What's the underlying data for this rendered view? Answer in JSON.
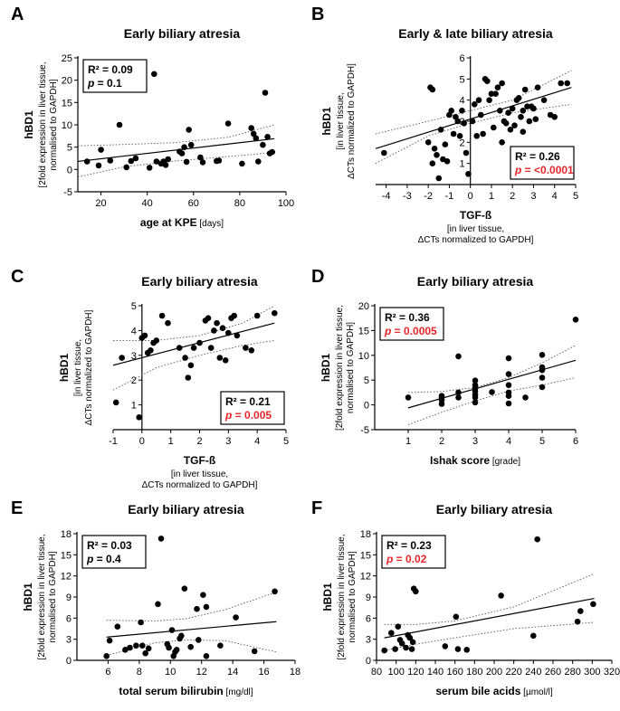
{
  "colors": {
    "axis": "#000000",
    "point": "#000000",
    "significant": "#e8262a",
    "ci": "#555555"
  },
  "chart_data": [
    {
      "panel": "A",
      "type": "scatter",
      "title": "Early biliary atresia",
      "ylabel": "hBD1",
      "ysub": [
        "[2fold expression in liver tissue,",
        "normalised to GAPDH]"
      ],
      "xlabel": "age at KPE",
      "xunit": "[days]",
      "xsub": [],
      "xlim": [
        10,
        100
      ],
      "ylim": [
        -5,
        25
      ],
      "xticks": [
        20,
        40,
        60,
        80,
        100
      ],
      "yticks": [
        -5,
        0,
        5,
        10,
        15,
        20,
        25
      ],
      "stats": {
        "r2": "R² = 0.09",
        "p": "= 0.1",
        "significant": false
      },
      "stats_position": "top-left",
      "points": [
        [
          14,
          1.8
        ],
        [
          19,
          0.9
        ],
        [
          20,
          4.4
        ],
        [
          24,
          2.0
        ],
        [
          28,
          10.0
        ],
        [
          31,
          0.5
        ],
        [
          33,
          1.9
        ],
        [
          35,
          2.5
        ],
        [
          41,
          0.4
        ],
        [
          43,
          21.4
        ],
        [
          44,
          1.8
        ],
        [
          46,
          1.3
        ],
        [
          47,
          1.8
        ],
        [
          48,
          1.0
        ],
        [
          49,
          2.3
        ],
        [
          54,
          4.0
        ],
        [
          55,
          3.6
        ],
        [
          56,
          5.0
        ],
        [
          57,
          1.7
        ],
        [
          58,
          8.9
        ],
        [
          59,
          5.5
        ],
        [
          63,
          2.7
        ],
        [
          64,
          1.6
        ],
        [
          70,
          1.9
        ],
        [
          71,
          2.0
        ],
        [
          75,
          10.3
        ],
        [
          81,
          1.3
        ],
        [
          85,
          9.3
        ],
        [
          86,
          8.0
        ],
        [
          87,
          7.0
        ],
        [
          88,
          1.8
        ],
        [
          90,
          5.5
        ],
        [
          91,
          17.2
        ],
        [
          92,
          7.3
        ],
        [
          93,
          3.6
        ],
        [
          94,
          3.9
        ]
      ],
      "fit": {
        "x": [
          10,
          95
        ],
        "y": [
          1.8,
          6.9
        ]
      },
      "ci_upper": {
        "x": [
          10,
          30,
          52,
          75,
          95
        ],
        "y": [
          5.3,
          5.6,
          6.0,
          7.2,
          10.0
        ]
      },
      "ci_lower": {
        "x": [
          10,
          30,
          52,
          75,
          95
        ],
        "y": [
          -1.7,
          0.6,
          1.9,
          2.9,
          3.8
        ]
      }
    },
    {
      "panel": "B",
      "type": "scatter",
      "title": "Early & late biliary atresia",
      "ylabel": "hBD1",
      "ysub": [
        "[in liver tissue,",
        "ΔCTs normalized to GAPDH]"
      ],
      "xlabel": "TGF-ß",
      "xunit": "",
      "xsub": [
        "[in liver tissue,",
        "ΔCTs normalized to GAPDH]"
      ],
      "xlim": [
        -4.5,
        5
      ],
      "ylim": [
        0,
        6
      ],
      "xticks": [
        -4,
        -3,
        -2,
        -1,
        0,
        1,
        2,
        3,
        4,
        5
      ],
      "yticks": [
        1,
        2,
        3,
        4,
        5,
        6
      ],
      "origin_axes": true,
      "stats": {
        "r2": "R² = 0.26",
        "p": "= <0.0001",
        "significant": true
      },
      "stats_position": "bottom-right",
      "points": [
        [
          -4.1,
          1.5
        ],
        [
          -2.0,
          2.0
        ],
        [
          -1.9,
          4.6
        ],
        [
          -1.8,
          4.5
        ],
        [
          -1.8,
          1.0
        ],
        [
          -1.7,
          1.7
        ],
        [
          -1.6,
          1.4
        ],
        [
          -1.5,
          0.3
        ],
        [
          -1.4,
          2.6
        ],
        [
          -1.3,
          1.2
        ],
        [
          -1.2,
          1.9
        ],
        [
          -1.1,
          1.1
        ],
        [
          -1.0,
          3.3
        ],
        [
          -0.9,
          3.5
        ],
        [
          -0.8,
          2.4
        ],
        [
          -0.7,
          3.2
        ],
        [
          -0.6,
          3.0
        ],
        [
          -0.5,
          2.3
        ],
        [
          -0.4,
          3.5
        ],
        [
          -0.3,
          2.9
        ],
        [
          -0.2,
          1.5
        ],
        [
          -0.1,
          0.5
        ],
        [
          0.1,
          3.0
        ],
        [
          0.2,
          3.8
        ],
        [
          0.3,
          2.3
        ],
        [
          0.4,
          4.0
        ],
        [
          0.5,
          3.3
        ],
        [
          0.6,
          2.4
        ],
        [
          0.7,
          5.0
        ],
        [
          0.8,
          4.9
        ],
        [
          0.9,
          4.0
        ],
        [
          1.0,
          4.3
        ],
        [
          1.1,
          2.7
        ],
        [
          1.2,
          4.3
        ],
        [
          1.3,
          4.6
        ],
        [
          1.4,
          3.5
        ],
        [
          1.5,
          2.0
        ],
        [
          1.5,
          4.8
        ],
        [
          1.6,
          3.0
        ],
        [
          1.7,
          2.9
        ],
        [
          1.8,
          3.4
        ],
        [
          1.9,
          2.6
        ],
        [
          2.0,
          3.6
        ],
        [
          2.1,
          2.8
        ],
        [
          2.2,
          4.0
        ],
        [
          2.3,
          4.1
        ],
        [
          2.4,
          3.2
        ],
        [
          2.5,
          2.5
        ],
        [
          2.5,
          3.5
        ],
        [
          2.6,
          4.5
        ],
        [
          2.7,
          3.7
        ],
        [
          2.8,
          3.0
        ],
        [
          2.9,
          3.7
        ],
        [
          3.0,
          3.6
        ],
        [
          3.1,
          3.1
        ],
        [
          3.2,
          4.6
        ],
        [
          3.5,
          4.0
        ],
        [
          3.8,
          3.3
        ],
        [
          4.0,
          3.2
        ],
        [
          4.3,
          4.8
        ],
        [
          4.6,
          4.8
        ]
      ],
      "fit": {
        "x": [
          -4.5,
          4.8
        ],
        "y": [
          1.7,
          4.6
        ]
      },
      "ci_upper": {
        "x": [
          -4.5,
          -2,
          0,
          2,
          4.8
        ],
        "y": [
          2.4,
          3.0,
          3.5,
          4.0,
          5.4
        ]
      },
      "ci_lower": {
        "x": [
          -4.5,
          -2,
          0,
          2,
          4.8
        ],
        "y": [
          1.0,
          2.3,
          2.9,
          3.4,
          3.8
        ]
      }
    },
    {
      "panel": "C",
      "type": "scatter",
      "title": "Early biliary atresia",
      "ylabel": "hBD1",
      "ysub": [
        "[in liver tissue,",
        "ΔCTs normalized to GAPDH]"
      ],
      "xlabel": "TGF-ß",
      "xunit": "",
      "xsub": [
        "[in liver tissue,",
        "ΔCTs normalized to GAPDH]"
      ],
      "xlim": [
        -1,
        5
      ],
      "ylim": [
        0,
        5
      ],
      "xticks": [
        -1,
        0,
        1,
        2,
        3,
        4,
        5
      ],
      "yticks": [
        1,
        2,
        3,
        4,
        5
      ],
      "origin_axes": true,
      "stats": {
        "r2": "R² = 0.21",
        "p": "= 0.005",
        "significant": true
      },
      "stats_position": "bottom-right",
      "points": [
        [
          -0.9,
          1.1
        ],
        [
          -0.7,
          2.9
        ],
        [
          -0.1,
          0.5
        ],
        [
          0.0,
          3.7
        ],
        [
          0.1,
          3.8
        ],
        [
          0.2,
          3.1
        ],
        [
          0.3,
          3.2
        ],
        [
          0.4,
          3.5
        ],
        [
          0.5,
          3.6
        ],
        [
          0.7,
          4.6
        ],
        [
          0.9,
          4.3
        ],
        [
          1.3,
          3.3
        ],
        [
          1.5,
          2.9
        ],
        [
          1.6,
          2.1
        ],
        [
          1.7,
          2.6
        ],
        [
          1.8,
          3.3
        ],
        [
          2.0,
          3.5
        ],
        [
          2.2,
          4.4
        ],
        [
          2.3,
          4.5
        ],
        [
          2.4,
          3.3
        ],
        [
          2.5,
          4.0
        ],
        [
          2.6,
          4.3
        ],
        [
          2.7,
          2.9
        ],
        [
          2.8,
          4.1
        ],
        [
          2.9,
          2.8
        ],
        [
          3.0,
          3.9
        ],
        [
          3.1,
          4.5
        ],
        [
          3.2,
          4.6
        ],
        [
          3.3,
          3.8
        ],
        [
          3.6,
          3.3
        ],
        [
          3.8,
          3.2
        ],
        [
          4.0,
          4.6
        ],
        [
          4.6,
          4.7
        ]
      ],
      "fit": {
        "x": [
          -1,
          4.6
        ],
        "y": [
          2.6,
          4.3
        ]
      },
      "ci_upper": {
        "x": [
          -1,
          0.5,
          2,
          3.5,
          4.6
        ],
        "y": [
          3.6,
          3.6,
          3.8,
          4.3,
          5.0
        ]
      },
      "ci_lower": {
        "x": [
          -1,
          0.5,
          2,
          3.5,
          4.6
        ],
        "y": [
          1.6,
          2.5,
          3.0,
          3.4,
          3.6
        ]
      }
    },
    {
      "panel": "D",
      "type": "scatter",
      "title": "Early biliary atresia",
      "ylabel": "hBD1",
      "ysub": [
        "[2fold expression in liver tissue,",
        "normalised to GAPDH]"
      ],
      "xlabel": "Ishak score",
      "xunit": "[grade]",
      "xsub": [],
      "xlim": [
        0,
        6
      ],
      "ylim": [
        -5,
        20
      ],
      "xticks": [
        1,
        2,
        3,
        4,
        5,
        6
      ],
      "yticks": [
        -5,
        0,
        5,
        10,
        15,
        20
      ],
      "stats": {
        "r2": "R² = 0.36",
        "p": "= 0.0005",
        "significant": true
      },
      "stats_position": "top-left",
      "points": [
        [
          1,
          1.5
        ],
        [
          2,
          0.2
        ],
        [
          2,
          1.0
        ],
        [
          2,
          1.5
        ],
        [
          2,
          1.8
        ],
        [
          2.5,
          9.8
        ],
        [
          2.5,
          2.5
        ],
        [
          2.5,
          1.5
        ],
        [
          3,
          4.9
        ],
        [
          3,
          4.0
        ],
        [
          3,
          3.3
        ],
        [
          3,
          2.7
        ],
        [
          3,
          2.0
        ],
        [
          3,
          1.5
        ],
        [
          3,
          0.5
        ],
        [
          3.5,
          2.6
        ],
        [
          4,
          9.4
        ],
        [
          4,
          6.2
        ],
        [
          4,
          4.0
        ],
        [
          4,
          2.5
        ],
        [
          4,
          1.8
        ],
        [
          4,
          0.3
        ],
        [
          4.5,
          1.5
        ],
        [
          5,
          10.1
        ],
        [
          5,
          7.6
        ],
        [
          5,
          7.0
        ],
        [
          5,
          5.5
        ],
        [
          5,
          3.6
        ],
        [
          6,
          17.2
        ]
      ],
      "fit": {
        "x": [
          1,
          6
        ],
        "y": [
          -0.6,
          9.0
        ]
      },
      "ci_upper": {
        "x": [
          1,
          2,
          3,
          4,
          5,
          6
        ],
        "y": [
          2.5,
          2.7,
          3.5,
          5.5,
          8.5,
          12.0
        ]
      },
      "ci_lower": {
        "x": [
          1,
          2,
          3,
          4,
          5,
          6
        ],
        "y": [
          -4.0,
          -1.5,
          0.8,
          2.8,
          4.0,
          5.5
        ]
      }
    },
    {
      "panel": "E",
      "type": "scatter",
      "title": "Early biliary atresia",
      "ylabel": "hBD1",
      "ysub": [
        "[2fold expression in liver tissue,",
        "normalised to GAPDH]"
      ],
      "xlabel": "total serum bilirubin",
      "xunit": "[mg/dl]",
      "xsub": [],
      "xlim": [
        4,
        18
      ],
      "ylim": [
        0,
        18
      ],
      "xticks": [
        6,
        8,
        10,
        12,
        14,
        16,
        18
      ],
      "yticks": [
        0,
        3,
        6,
        9,
        12,
        15,
        18
      ],
      "stats": {
        "r2": "R² = 0.03",
        "p": "= 0.4",
        "significant": false
      },
      "stats_position": "top-left",
      "points": [
        [
          5.9,
          0.6
        ],
        [
          6.1,
          2.8
        ],
        [
          6.6,
          4.8
        ],
        [
          7.1,
          1.5
        ],
        [
          7.4,
          1.8
        ],
        [
          7.8,
          2.1
        ],
        [
          8.1,
          5.4
        ],
        [
          8.2,
          2.1
        ],
        [
          8.4,
          1.0
        ],
        [
          8.6,
          1.7
        ],
        [
          9.2,
          8.0
        ],
        [
          9.4,
          17.3
        ],
        [
          9.8,
          2.3
        ],
        [
          9.9,
          1.8
        ],
        [
          10.1,
          4.3
        ],
        [
          10.2,
          0.6
        ],
        [
          10.3,
          1.2
        ],
        [
          10.4,
          1.5
        ],
        [
          10.6,
          3.1
        ],
        [
          10.7,
          3.5
        ],
        [
          10.9,
          10.2
        ],
        [
          11.3,
          1.9
        ],
        [
          11.7,
          7.3
        ],
        [
          11.8,
          2.9
        ],
        [
          12.1,
          9.3
        ],
        [
          12.3,
          0.6
        ],
        [
          12.3,
          7.6
        ],
        [
          13.2,
          2.1
        ],
        [
          14.2,
          6.1
        ],
        [
          15.4,
          1.3
        ],
        [
          16.7,
          9.8
        ]
      ],
      "fit": {
        "x": [
          5.9,
          16.8
        ],
        "y": [
          3.3,
          5.5
        ]
      },
      "ci_upper": {
        "x": [
          5.9,
          9,
          11,
          13.5,
          16.8
        ],
        "y": [
          5.7,
          5.6,
          5.9,
          7.2,
          9.7
        ]
      },
      "ci_lower": {
        "x": [
          5.9,
          9,
          11,
          13.5,
          16.8
        ],
        "y": [
          0.7,
          2.5,
          2.9,
          2.8,
          1.2
        ]
      }
    },
    {
      "panel": "F",
      "type": "scatter",
      "title": "Early biliary atresia",
      "ylabel": "hBD1",
      "ysub": [
        "[2fold expression in liver tissue,",
        "normalised to GAPDH]"
      ],
      "xlabel": "serum bile acids",
      "xunit": "[µmol/l]",
      "xsub": [],
      "xlim": [
        80,
        320
      ],
      "ylim": [
        0,
        18
      ],
      "xticks": [
        80,
        100,
        120,
        140,
        160,
        180,
        200,
        220,
        240,
        260,
        280,
        300,
        320
      ],
      "yticks": [
        0,
        3,
        6,
        9,
        12,
        15,
        18
      ],
      "stats": {
        "r2": "R² = 0.23",
        "p": "= 0.02",
        "significant": true
      },
      "stats_position": "top-left",
      "points": [
        [
          88,
          1.4
        ],
        [
          95,
          3.9
        ],
        [
          99,
          1.6
        ],
        [
          102,
          4.8
        ],
        [
          104,
          2.9
        ],
        [
          106,
          2.4
        ],
        [
          110,
          1.8
        ],
        [
          112,
          3.6
        ],
        [
          114,
          3.2
        ],
        [
          116,
          1.6
        ],
        [
          117,
          2.6
        ],
        [
          118,
          10.2
        ],
        [
          120,
          9.8
        ],
        [
          150,
          2.0
        ],
        [
          161,
          6.2
        ],
        [
          163,
          1.6
        ],
        [
          172,
          1.5
        ],
        [
          207,
          9.2
        ],
        [
          240,
          3.5
        ],
        [
          244,
          17.2
        ],
        [
          285,
          5.5
        ],
        [
          288,
          7.0
        ],
        [
          301,
          8.0
        ]
      ],
      "fit": {
        "x": [
          88,
          302
        ],
        "y": [
          3.2,
          8.8
        ]
      },
      "ci_upper": {
        "x": [
          88,
          120,
          160,
          220,
          302
        ],
        "y": [
          5.1,
          5.1,
          5.6,
          7.6,
          12.3
        ]
      },
      "ci_lower": {
        "x": [
          88,
          120,
          160,
          220,
          302
        ],
        "y": [
          1.4,
          2.3,
          3.2,
          4.5,
          5.4
        ]
      }
    }
  ]
}
